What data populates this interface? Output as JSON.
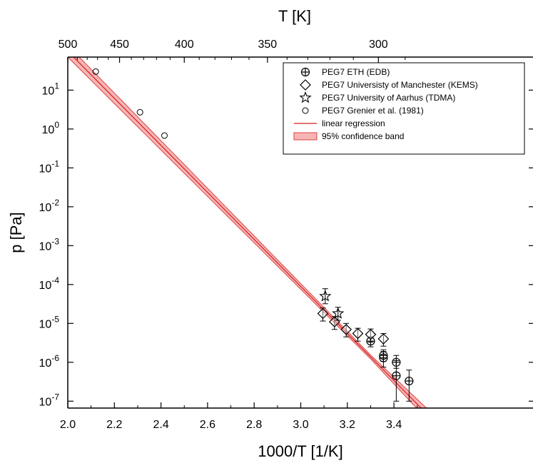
{
  "chart_data": {
    "type": "scatter",
    "title": "",
    "xlabel": "1000/T [1/K]",
    "ylabel": "p [Pa]",
    "x2label": "T [K]",
    "xlim": [
      2.0,
      3.52
    ],
    "ylim_log10": [
      -7,
      1.85
    ],
    "yscale": "log",
    "x_ticks": [
      "2.0",
      "2.2",
      "2.4",
      "2.6",
      "2.8",
      "3.0",
      "3.2",
      "3.4"
    ],
    "x2_ticks": [
      "500",
      "450",
      "400",
      "350",
      "300"
    ],
    "y_tick_mantissa": "10",
    "y_ticks_exp": [
      "-7",
      "-6",
      "-5",
      "-4",
      "-3",
      "-2",
      "-1",
      "0",
      "1"
    ],
    "grid": false,
    "legend_position": "top-right",
    "legend": [
      {
        "label": "PEG7 ETH (EDB)",
        "marker": "circle-plus"
      },
      {
        "label": "PEG7 Universisty of Manchester (KEMS)",
        "marker": "diamond"
      },
      {
        "label": "PEG7 University of Aarhus (TDMA)",
        "marker": "star"
      },
      {
        "label": "PEG7 Grenier et al. (1981)",
        "marker": "small-circle"
      },
      {
        "label": "linear regression",
        "marker": "line"
      },
      {
        "label": "95% confidence band",
        "marker": "band"
      }
    ],
    "series": [
      {
        "name": "PEG7 ETH (EDB)",
        "marker": "circle-plus",
        "points": [
          {
            "x": 3.3,
            "y": 3.5e-06,
            "ylo": 2.5e-06,
            "yhi": 4.5e-06
          },
          {
            "x": 3.355,
            "y": 1.5e-06,
            "ylo": 1.05e-06,
            "yhi": 2.1e-06
          },
          {
            "x": 3.355,
            "y": 1.3e-06,
            "ylo": 7.5e-07,
            "yhi": 1.9e-06
          },
          {
            "x": 3.41,
            "y": 1e-06,
            "ylo": 7e-07,
            "yhi": 1.5e-06
          },
          {
            "x": 3.41,
            "y": 4.5e-07,
            "ylo": 1e-07,
            "yhi": 1.1e-06
          },
          {
            "x": 3.465,
            "y": 3.3e-07,
            "ylo": 1e-07,
            "yhi": 6.3e-07
          }
        ]
      },
      {
        "name": "PEG7 Universisty of Manchester (KEMS)",
        "marker": "diamond",
        "points": [
          {
            "x": 3.095,
            "y": 1.8e-05,
            "ylo": 1.15e-05,
            "yhi": 2.5e-05
          },
          {
            "x": 3.145,
            "y": 1.1e-05,
            "ylo": 7e-06,
            "yhi": 1.5e-05
          },
          {
            "x": 3.195,
            "y": 7e-06,
            "ylo": 4.5e-06,
            "yhi": 1e-05
          },
          {
            "x": 3.245,
            "y": 5.5e-06,
            "ylo": 3.5e-06,
            "yhi": 7.5e-06
          },
          {
            "x": 3.3,
            "y": 5.2e-06,
            "ylo": 3.3e-06,
            "yhi": 7.2e-06
          },
          {
            "x": 3.355,
            "y": 4e-06,
            "ylo": 2.6e-06,
            "yhi": 5.5e-06
          }
        ]
      },
      {
        "name": "PEG7 University of Aarhus (TDMA)",
        "marker": "star",
        "points": [
          {
            "x": 3.105,
            "y": 5e-05,
            "ylo": 3.2e-05,
            "yhi": 7.8e-05
          },
          {
            "x": 3.16,
            "y": 1.8e-05,
            "ylo": 1.2e-05,
            "yhi": 2.6e-05
          }
        ]
      },
      {
        "name": "PEG7 Grenier et al. (1981)",
        "marker": "small-circle",
        "points": [
          {
            "x": 2.12,
            "y": 30
          },
          {
            "x": 2.31,
            "y": 2.7
          },
          {
            "x": 2.415,
            "y": 0.68
          }
        ]
      }
    ],
    "regression": {
      "name": "linear regression",
      "slope_log10": -6.05,
      "intercept_log10": 14.1,
      "band_halfwidth_log10_at_x2": 0.15,
      "band_halfwidth_log10_at_x3_3": 0.05,
      "band_halfwidth_log10_at_x3_52": 0.13
    },
    "colors": {
      "axis": "#000000",
      "marker": "#000000",
      "regression_line": "#d32020",
      "band_fill": "#f6b5b5",
      "band_edge": "#e04040"
    }
  }
}
